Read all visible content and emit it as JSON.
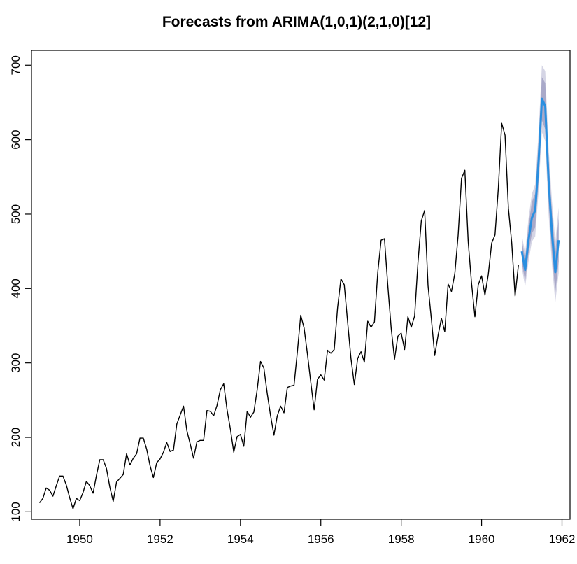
{
  "chart_data": {
    "type": "line",
    "title": "Forecasts from ARIMA(1,0,1)(2,1,0)[12]",
    "xlabel": "",
    "ylabel": "",
    "xlim": [
      1948.8,
      1962.2
    ],
    "ylim": [
      90,
      720
    ],
    "x_ticks": [
      1950,
      1952,
      1954,
      1956,
      1958,
      1960,
      1962
    ],
    "y_ticks": [
      100,
      200,
      300,
      400,
      500,
      600,
      700
    ],
    "grid": false,
    "legend": "none",
    "colors": {
      "observed": "#000000",
      "forecast": "#2a8fe0",
      "interval_80": "#a9a9c9",
      "interval_95": "#d5d5e5"
    },
    "series": [
      {
        "start": 1949,
        "frequency": 12,
        "values": [
          112,
          118,
          132,
          129,
          121,
          135,
          148,
          148,
          136,
          119,
          104,
          118,
          115,
          126,
          141,
          135,
          125,
          149,
          170,
          170,
          158,
          133,
          114,
          140,
          145,
          150,
          178,
          163,
          172,
          178,
          199,
          199,
          184,
          162,
          146,
          166,
          171,
          180,
          193,
          181,
          183,
          218,
          230,
          242,
          209,
          191,
          172,
          194,
          196,
          196,
          236,
          235,
          229,
          243,
          264,
          272,
          237,
          211,
          180,
          201,
          204,
          188,
          235,
          227,
          234,
          264,
          302,
          293,
          259,
          229,
          203,
          229,
          242,
          233,
          267,
          269,
          270,
          315,
          364,
          347,
          312,
          274,
          237,
          278,
          284,
          277,
          317,
          313,
          318,
          374,
          413,
          405,
          355,
          306,
          271,
          306,
          315,
          301,
          356,
          348,
          355,
          422,
          465,
          467,
          404,
          347,
          305,
          336,
          340,
          318,
          362,
          348,
          363,
          435,
          491,
          505,
          404,
          359,
          310,
          337,
          360,
          342,
          406,
          396,
          420,
          472,
          548,
          559,
          463,
          407,
          362,
          405,
          417,
          391,
          419,
          461,
          472,
          535,
          622,
          606,
          508,
          461,
          390,
          432
        ]
      },
      {
        "start": 1961,
        "frequency": 12,
        "values": [
          450,
          425,
          465,
          495,
          505,
          570,
          655,
          645,
          545,
          475,
          422,
          465
        ],
        "lower80": [
          435,
          410,
          446,
          474,
          482,
          544,
          626,
          614,
          516,
          447,
          395,
          436
        ],
        "upper80": [
          465,
          440,
          484,
          516,
          528,
          596,
          684,
          676,
          574,
          503,
          449,
          494
        ],
        "lower95": [
          428,
          402,
          436,
          463,
          470,
          530,
          610,
          598,
          500,
          432,
          381,
          421
        ],
        "upper95": [
          472,
          448,
          494,
          527,
          540,
          610,
          700,
          692,
          590,
          518,
          463,
          509
        ]
      }
    ]
  }
}
